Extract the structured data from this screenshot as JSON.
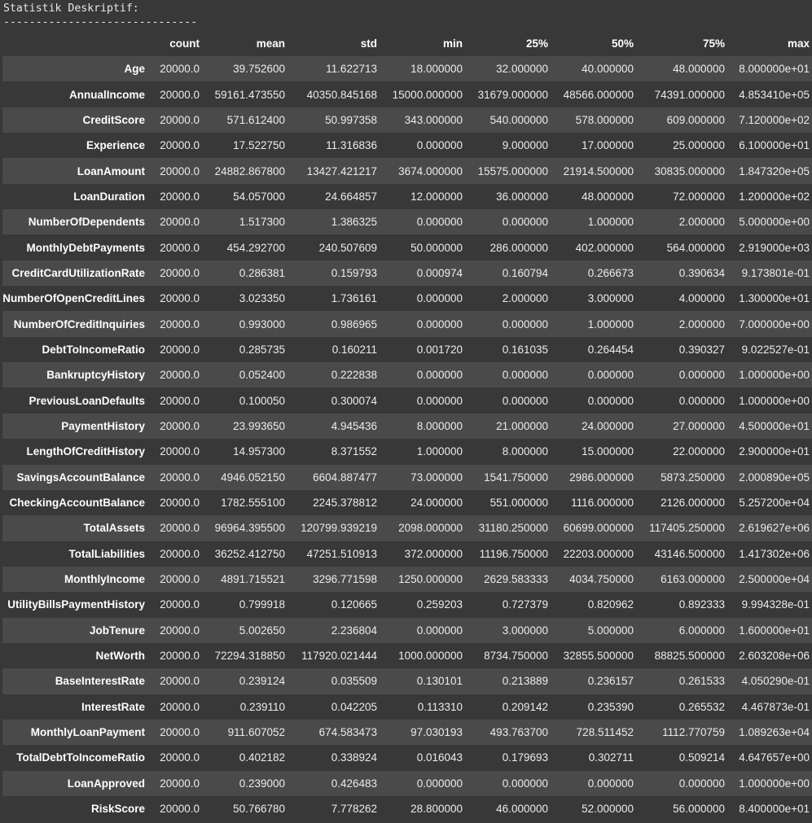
{
  "output": {
    "title": "Statistik Deskriptif:",
    "separator": "------------------------------"
  },
  "table": {
    "columns": [
      "count",
      "mean",
      "std",
      "min",
      "25%",
      "50%",
      "75%",
      "max"
    ],
    "rows": [
      {
        "label": "Age",
        "values": [
          "20000.0",
          "39.752600",
          "11.622713",
          "18.000000",
          "32.000000",
          "40.000000",
          "48.000000",
          "8.000000e+01"
        ]
      },
      {
        "label": "AnnualIncome",
        "values": [
          "20000.0",
          "59161.473550",
          "40350.845168",
          "15000.000000",
          "31679.000000",
          "48566.000000",
          "74391.000000",
          "4.853410e+05"
        ]
      },
      {
        "label": "CreditScore",
        "values": [
          "20000.0",
          "571.612400",
          "50.997358",
          "343.000000",
          "540.000000",
          "578.000000",
          "609.000000",
          "7.120000e+02"
        ]
      },
      {
        "label": "Experience",
        "values": [
          "20000.0",
          "17.522750",
          "11.316836",
          "0.000000",
          "9.000000",
          "17.000000",
          "25.000000",
          "6.100000e+01"
        ]
      },
      {
        "label": "LoanAmount",
        "values": [
          "20000.0",
          "24882.867800",
          "13427.421217",
          "3674.000000",
          "15575.000000",
          "21914.500000",
          "30835.000000",
          "1.847320e+05"
        ]
      },
      {
        "label": "LoanDuration",
        "values": [
          "20000.0",
          "54.057000",
          "24.664857",
          "12.000000",
          "36.000000",
          "48.000000",
          "72.000000",
          "1.200000e+02"
        ]
      },
      {
        "label": "NumberOfDependents",
        "values": [
          "20000.0",
          "1.517300",
          "1.386325",
          "0.000000",
          "0.000000",
          "1.000000",
          "2.000000",
          "5.000000e+00"
        ]
      },
      {
        "label": "MonthlyDebtPayments",
        "values": [
          "20000.0",
          "454.292700",
          "240.507609",
          "50.000000",
          "286.000000",
          "402.000000",
          "564.000000",
          "2.919000e+03"
        ]
      },
      {
        "label": "CreditCardUtilizationRate",
        "values": [
          "20000.0",
          "0.286381",
          "0.159793",
          "0.000974",
          "0.160794",
          "0.266673",
          "0.390634",
          "9.173801e-01"
        ]
      },
      {
        "label": "NumberOfOpenCreditLines",
        "values": [
          "20000.0",
          "3.023350",
          "1.736161",
          "0.000000",
          "2.000000",
          "3.000000",
          "4.000000",
          "1.300000e+01"
        ]
      },
      {
        "label": "NumberOfCreditInquiries",
        "values": [
          "20000.0",
          "0.993000",
          "0.986965",
          "0.000000",
          "0.000000",
          "1.000000",
          "2.000000",
          "7.000000e+00"
        ]
      },
      {
        "label": "DebtToIncomeRatio",
        "values": [
          "20000.0",
          "0.285735",
          "0.160211",
          "0.001720",
          "0.161035",
          "0.264454",
          "0.390327",
          "9.022527e-01"
        ]
      },
      {
        "label": "BankruptcyHistory",
        "values": [
          "20000.0",
          "0.052400",
          "0.222838",
          "0.000000",
          "0.000000",
          "0.000000",
          "0.000000",
          "1.000000e+00"
        ]
      },
      {
        "label": "PreviousLoanDefaults",
        "values": [
          "20000.0",
          "0.100050",
          "0.300074",
          "0.000000",
          "0.000000",
          "0.000000",
          "0.000000",
          "1.000000e+00"
        ]
      },
      {
        "label": "PaymentHistory",
        "values": [
          "20000.0",
          "23.993650",
          "4.945436",
          "8.000000",
          "21.000000",
          "24.000000",
          "27.000000",
          "4.500000e+01"
        ]
      },
      {
        "label": "LengthOfCreditHistory",
        "values": [
          "20000.0",
          "14.957300",
          "8.371552",
          "1.000000",
          "8.000000",
          "15.000000",
          "22.000000",
          "2.900000e+01"
        ]
      },
      {
        "label": "SavingsAccountBalance",
        "values": [
          "20000.0",
          "4946.052150",
          "6604.887477",
          "73.000000",
          "1541.750000",
          "2986.000000",
          "5873.250000",
          "2.000890e+05"
        ]
      },
      {
        "label": "CheckingAccountBalance",
        "values": [
          "20000.0",
          "1782.555100",
          "2245.378812",
          "24.000000",
          "551.000000",
          "1116.000000",
          "2126.000000",
          "5.257200e+04"
        ]
      },
      {
        "label": "TotalAssets",
        "values": [
          "20000.0",
          "96964.395500",
          "120799.939219",
          "2098.000000",
          "31180.250000",
          "60699.000000",
          "117405.250000",
          "2.619627e+06"
        ]
      },
      {
        "label": "TotalLiabilities",
        "values": [
          "20000.0",
          "36252.412750",
          "47251.510913",
          "372.000000",
          "11196.750000",
          "22203.000000",
          "43146.500000",
          "1.417302e+06"
        ]
      },
      {
        "label": "MonthlyIncome",
        "values": [
          "20000.0",
          "4891.715521",
          "3296.771598",
          "1250.000000",
          "2629.583333",
          "4034.750000",
          "6163.000000",
          "2.500000e+04"
        ]
      },
      {
        "label": "UtilityBillsPaymentHistory",
        "values": [
          "20000.0",
          "0.799918",
          "0.120665",
          "0.259203",
          "0.727379",
          "0.820962",
          "0.892333",
          "9.994328e-01"
        ]
      },
      {
        "label": "JobTenure",
        "values": [
          "20000.0",
          "5.002650",
          "2.236804",
          "0.000000",
          "3.000000",
          "5.000000",
          "6.000000",
          "1.600000e+01"
        ]
      },
      {
        "label": "NetWorth",
        "values": [
          "20000.0",
          "72294.318850",
          "117920.021444",
          "1000.000000",
          "8734.750000",
          "32855.500000",
          "88825.500000",
          "2.603208e+06"
        ]
      },
      {
        "label": "BaseInterestRate",
        "values": [
          "20000.0",
          "0.239124",
          "0.035509",
          "0.130101",
          "0.213889",
          "0.236157",
          "0.261533",
          "4.050290e-01"
        ]
      },
      {
        "label": "InterestRate",
        "values": [
          "20000.0",
          "0.239110",
          "0.042205",
          "0.113310",
          "0.209142",
          "0.235390",
          "0.265532",
          "4.467873e-01"
        ]
      },
      {
        "label": "MonthlyLoanPayment",
        "values": [
          "20000.0",
          "911.607052",
          "674.583473",
          "97.030193",
          "493.763700",
          "728.511452",
          "1112.770759",
          "1.089263e+04"
        ]
      },
      {
        "label": "TotalDebtToIncomeRatio",
        "values": [
          "20000.0",
          "0.402182",
          "0.338924",
          "0.016043",
          "0.179693",
          "0.302711",
          "0.509214",
          "4.647657e+00"
        ]
      },
      {
        "label": "LoanApproved",
        "values": [
          "20000.0",
          "0.239000",
          "0.426483",
          "0.000000",
          "0.000000",
          "0.000000",
          "0.000000",
          "1.000000e+00"
        ]
      },
      {
        "label": "RiskScore",
        "values": [
          "20000.0",
          "50.766780",
          "7.778262",
          "28.800000",
          "46.000000",
          "52.000000",
          "56.000000",
          "8.400000e+01"
        ]
      }
    ]
  }
}
